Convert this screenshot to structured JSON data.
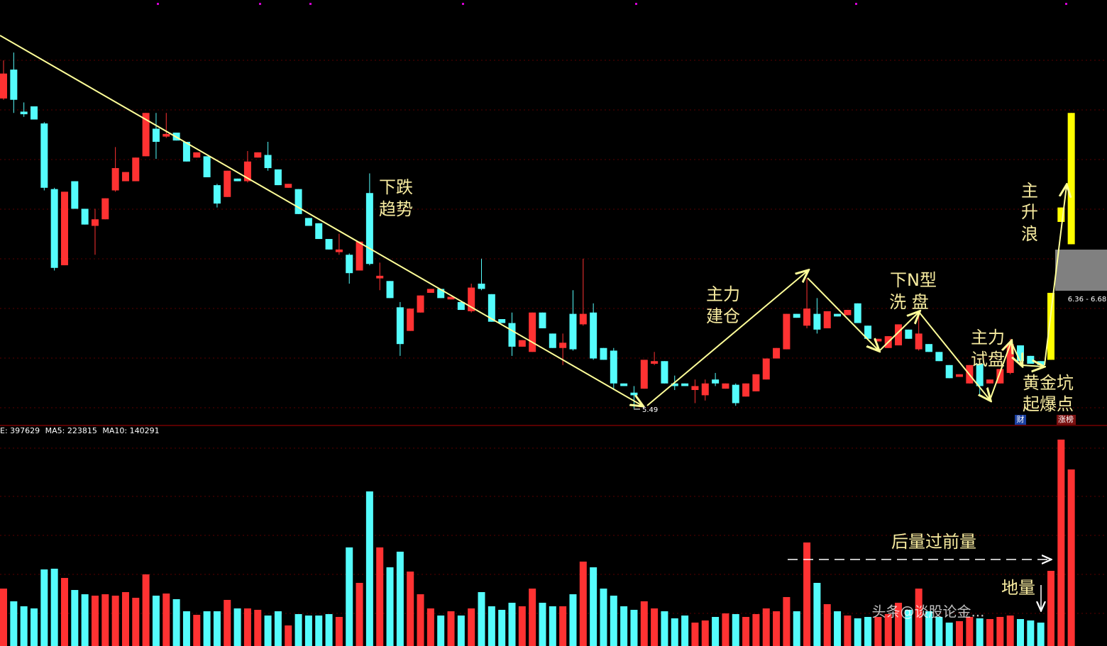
{
  "chart_data": [
    {
      "type": "candlestick",
      "ylim": [
        5.36,
        8.6
      ],
      "up_color": "#ff3232",
      "down_color": "#54fcfc",
      "limit_up_color": "#ffff00",
      "limit_up": [
        103,
        104,
        105
      ],
      "ohlc": [
        [
          7.85,
          8.14,
          7.84,
          8.04
        ],
        [
          8.07,
          8.2,
          7.74,
          7.84
        ],
        [
          7.75,
          7.82,
          7.71,
          7.73
        ],
        [
          7.79,
          7.79,
          7.69,
          7.69
        ],
        [
          7.66,
          7.67,
          7.15,
          7.17
        ],
        [
          7.16,
          7.17,
          6.54,
          6.56
        ],
        [
          6.58,
          7.14,
          6.58,
          7.14
        ],
        [
          7.22,
          7.22,
          7.01,
          7.01
        ],
        [
          7.01,
          7.01,
          6.89,
          6.89
        ],
        [
          6.88,
          7.01,
          6.66,
          6.93
        ],
        [
          6.93,
          7.09,
          6.93,
          7.09
        ],
        [
          7.15,
          7.48,
          7.14,
          7.32
        ],
        [
          7.22,
          7.29,
          7.22,
          7.29
        ],
        [
          7.22,
          7.4,
          7.22,
          7.4
        ],
        [
          7.41,
          7.74,
          7.41,
          7.74
        ],
        [
          7.62,
          7.74,
          7.39,
          7.52
        ],
        [
          7.56,
          7.74,
          7.55,
          7.58
        ],
        [
          7.59,
          7.59,
          7.53,
          7.53
        ],
        [
          7.52,
          7.52,
          7.37,
          7.37
        ],
        [
          7.4,
          7.44,
          7.4,
          7.44
        ],
        [
          7.41,
          7.41,
          7.25,
          7.25
        ],
        [
          7.19,
          7.2,
          7.02,
          7.05
        ],
        [
          7.1,
          7.3,
          7.1,
          7.3
        ],
        [
          7.24,
          7.24,
          7.22,
          7.22
        ],
        [
          7.22,
          7.45,
          7.21,
          7.37
        ],
        [
          7.4,
          7.44,
          7.4,
          7.44
        ],
        [
          7.42,
          7.52,
          7.3,
          7.32
        ],
        [
          7.31,
          7.31,
          7.19,
          7.19
        ],
        [
          7.17,
          7.2,
          7.17,
          7.2
        ],
        [
          7.16,
          7.16,
          6.97,
          6.97
        ],
        [
          6.94,
          6.94,
          6.88,
          6.88
        ],
        [
          6.9,
          6.9,
          6.78,
          6.78
        ],
        [
          6.78,
          6.78,
          6.7,
          6.7
        ],
        [
          6.68,
          6.82,
          6.66,
          6.7
        ],
        [
          6.66,
          6.67,
          6.44,
          6.52
        ],
        [
          6.54,
          6.76,
          6.54,
          6.76
        ],
        [
          7.13,
          7.28,
          6.58,
          6.59
        ],
        [
          6.48,
          6.6,
          6.39,
          6.5
        ],
        [
          6.46,
          6.46,
          6.33,
          6.33
        ],
        [
          6.26,
          6.3,
          5.89,
          5.98
        ],
        [
          6.08,
          6.25,
          6.08,
          6.25
        ],
        [
          6.22,
          6.35,
          6.22,
          6.35
        ],
        [
          6.37,
          6.4,
          6.37,
          6.4
        ],
        [
          6.4,
          6.4,
          6.33,
          6.33
        ],
        [
          6.32,
          6.34,
          6.32,
          6.34
        ],
        [
          6.3,
          6.3,
          6.24,
          6.24
        ],
        [
          6.23,
          6.44,
          6.22,
          6.41
        ],
        [
          6.44,
          6.63,
          6.39,
          6.4
        ],
        [
          6.36,
          6.36,
          6.15,
          6.15
        ],
        [
          6.17,
          6.17,
          6.14,
          6.14
        ],
        [
          6.14,
          6.22,
          5.89,
          5.96
        ],
        [
          5.96,
          6.01,
          5.96,
          6.01
        ],
        [
          5.92,
          6.22,
          5.92,
          6.22
        ],
        [
          6.22,
          6.22,
          6.1,
          6.1
        ],
        [
          6.06,
          6.06,
          5.95,
          5.95
        ],
        [
          5.95,
          6.06,
          5.82,
          5.99
        ],
        [
          6.21,
          6.39,
          5.93,
          5.94
        ],
        [
          6.13,
          6.63,
          6.12,
          6.21
        ],
        [
          6.22,
          6.29,
          5.86,
          5.87
        ],
        [
          5.95,
          5.95,
          5.86,
          5.86
        ],
        [
          5.93,
          5.95,
          5.63,
          5.68
        ],
        [
          5.68,
          5.68,
          5.66,
          5.66
        ],
        [
          5.61,
          5.66,
          5.49,
          5.59
        ],
        [
          5.64,
          5.86,
          5.64,
          5.86
        ],
        [
          5.83,
          5.92,
          5.82,
          5.85
        ],
        [
          5.85,
          5.85,
          5.68,
          5.68
        ],
        [
          5.68,
          5.74,
          5.63,
          5.66
        ],
        [
          5.68,
          5.68,
          5.66,
          5.66
        ],
        [
          5.63,
          5.71,
          5.53,
          5.66
        ],
        [
          5.59,
          5.71,
          5.55,
          5.68
        ],
        [
          5.71,
          5.76,
          5.66,
          5.68
        ],
        [
          5.64,
          5.68,
          5.64,
          5.68
        ],
        [
          5.67,
          5.68,
          5.51,
          5.53
        ],
        [
          5.58,
          5.68,
          5.58,
          5.68
        ],
        [
          5.62,
          5.75,
          5.62,
          5.75
        ],
        [
          5.71,
          5.87,
          5.71,
          5.87
        ],
        [
          5.87,
          5.95,
          5.87,
          5.95
        ],
        [
          5.94,
          6.21,
          5.94,
          6.21
        ],
        [
          6.21,
          6.21,
          6.18,
          6.18
        ],
        [
          6.12,
          6.48,
          6.1,
          6.25
        ],
        [
          6.21,
          6.33,
          6.06,
          6.09
        ],
        [
          6.1,
          6.23,
          6.1,
          6.23
        ],
        [
          6.21,
          6.21,
          6.19,
          6.19
        ],
        [
          6.2,
          6.24,
          6.2,
          6.24
        ],
        [
          6.29,
          6.29,
          6.14,
          6.14
        ],
        [
          6.12,
          6.12,
          6.02,
          6.02
        ],
        [
          6.0,
          6.02,
          6.0,
          6.02
        ],
        [
          5.95,
          6.04,
          5.95,
          6.04
        ],
        [
          5.97,
          6.13,
          5.97,
          6.13
        ],
        [
          6.09,
          6.09,
          6.02,
          6.02
        ],
        [
          5.94,
          6.22,
          5.93,
          6.06
        ],
        [
          5.98,
          5.98,
          5.92,
          5.92
        ],
        [
          5.92,
          5.92,
          5.85,
          5.85
        ],
        [
          5.82,
          5.82,
          5.72,
          5.72
        ],
        [
          5.73,
          5.75,
          5.73,
          5.75
        ],
        [
          5.68,
          5.82,
          5.68,
          5.82
        ],
        [
          5.83,
          5.87,
          5.58,
          5.66
        ],
        [
          5.68,
          5.71,
          5.68,
          5.71
        ],
        [
          5.68,
          5.79,
          5.68,
          5.79
        ],
        [
          5.76,
          6.02,
          5.75,
          5.98
        ],
        [
          5.97,
          5.97,
          5.85,
          5.85
        ],
        [
          5.89,
          5.89,
          5.83,
          5.83
        ],
        [
          5.85,
          5.85,
          5.82,
          5.82
        ],
        [
          5.86,
          6.37,
          5.86,
          6.37
        ],
        [
          6.91,
          7.02,
          6.91,
          7.02
        ],
        [
          6.74,
          7.74,
          6.74,
          7.74
        ]
      ],
      "low_marker": 5.49,
      "range_label": "6.36 - 6.68",
      "annotations": [
        [
          "下跌",
          "趋势"
        ],
        [
          "主力",
          "建仓"
        ],
        [
          "下N型",
          "洗 盘"
        ],
        [
          "主力",
          "试盘"
        ],
        [
          "黄金坑",
          "起爆点"
        ],
        [
          "主",
          "升",
          "浪"
        ]
      ],
      "tags": [
        "财",
        "涨榜"
      ]
    },
    {
      "type": "bar",
      "ylim": [
        0,
        418000
      ],
      "legend": [
        {
          "name": "E:",
          "value": 397629
        },
        {
          "name": "MA5:",
          "value": 223815
        },
        {
          "name": "MA10:",
          "value": 140291
        }
      ],
      "values": [
        110600,
        86100,
        76500,
        72400,
        147500,
        148900,
        131100,
        107900,
        99700,
        97000,
        99700,
        97000,
        103800,
        92900,
        138000,
        97000,
        101100,
        90200,
        66900,
        60100,
        66900,
        66900,
        88800,
        72400,
        72400,
        69700,
        58700,
        66900,
        39600,
        61500,
        58700,
        58700,
        61500,
        56000,
        189900,
        121600,
        297800,
        189900,
        151600,
        181700,
        143400,
        99700,
        72400,
        58700,
        66900,
        58700,
        72400,
        103800,
        76500,
        69700,
        83300,
        76500,
        110600,
        83300,
        76500,
        76500,
        99700,
        162600,
        151600,
        110600,
        97000,
        76500,
        69700,
        86100,
        72400,
        66900,
        53300,
        58700,
        45100,
        49200,
        56000,
        62800,
        61500,
        56000,
        61500,
        72400,
        66900,
        94300,
        66900,
        199400,
        121600,
        80600,
        66900,
        58700,
        53300,
        56000,
        56000,
        61500,
        83300,
        69700,
        110600,
        66900,
        56000,
        45100,
        47800,
        56000,
        53300,
        51900,
        56000,
        58700,
        51900,
        49200,
        45100,
        144800,
        397629,
        340100
      ],
      "annotations": [
        "后量过前量",
        "地量"
      ],
      "watermark": "头条@谈股论金..."
    }
  ]
}
